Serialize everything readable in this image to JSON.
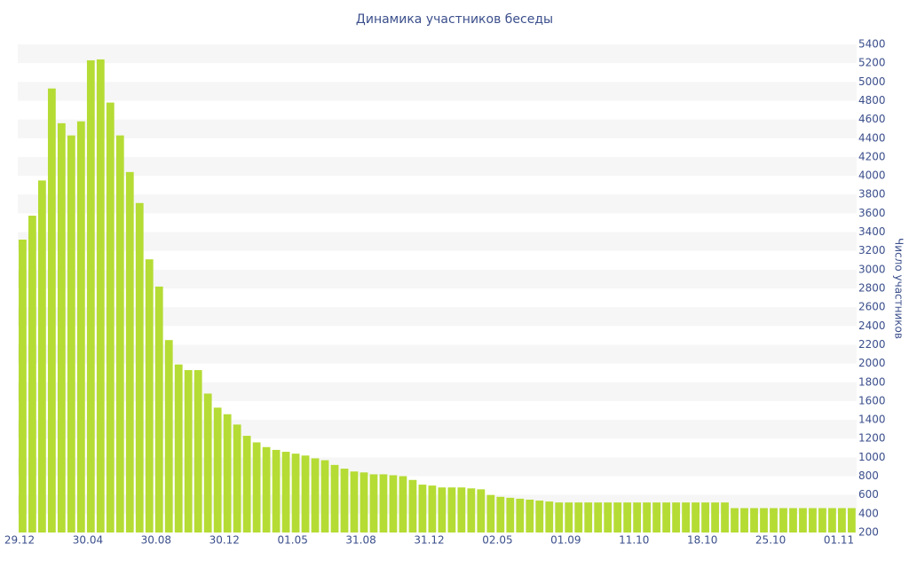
{
  "chart_data": {
    "type": "bar",
    "title": "Динамика участников беседы",
    "y_axis_label": "Число участников",
    "categories": [
      "29.12",
      null,
      null,
      null,
      null,
      null,
      null,
      "30.04",
      null,
      null,
      null,
      null,
      null,
      null,
      "30.08",
      null,
      null,
      null,
      null,
      null,
      null,
      "30.12",
      null,
      null,
      null,
      null,
      null,
      null,
      "01.05",
      null,
      null,
      null,
      null,
      null,
      null,
      "31.08",
      null,
      null,
      null,
      null,
      null,
      null,
      "31.12",
      null,
      null,
      null,
      null,
      null,
      null,
      "02.05",
      null,
      null,
      null,
      null,
      null,
      null,
      "01.09",
      null,
      null,
      null,
      null,
      null,
      null,
      "11.10",
      null,
      null,
      null,
      null,
      null,
      null,
      "18.10",
      null,
      null,
      null,
      null,
      null,
      null,
      "25.10",
      null,
      null,
      null,
      null,
      null,
      null,
      "01.11",
      null
    ],
    "values": [
      3320,
      3575,
      3950,
      4930,
      4560,
      4430,
      4580,
      5230,
      5240,
      4780,
      4430,
      4040,
      3710,
      3110,
      2820,
      2250,
      1990,
      1930,
      1930,
      1680,
      1530,
      1460,
      1350,
      1230,
      1160,
      1110,
      1080,
      1060,
      1040,
      1020,
      990,
      970,
      920,
      880,
      850,
      840,
      820,
      820,
      810,
      800,
      760,
      710,
      700,
      680,
      680,
      680,
      670,
      660,
      600,
      580,
      570,
      560,
      550,
      540,
      530,
      520,
      520,
      520,
      520,
      520,
      520,
      520,
      520,
      520,
      520,
      520,
      520,
      520,
      520,
      520,
      520,
      520,
      520,
      460,
      460,
      460,
      460,
      460,
      460,
      460,
      460,
      460,
      460,
      460,
      460,
      460
    ],
    "color": "#b5dc34",
    "ylim": [
      200,
      5400
    ],
    "yticks": [
      200,
      400,
      600,
      800,
      1000,
      1200,
      1400,
      1600,
      1800,
      2000,
      2200,
      2400,
      2600,
      2800,
      3000,
      3200,
      3400,
      3600,
      3800,
      4000,
      4200,
      4400,
      4600,
      4800,
      5000,
      5200,
      5400
    ],
    "y_axis_side": "right",
    "grid": true
  }
}
